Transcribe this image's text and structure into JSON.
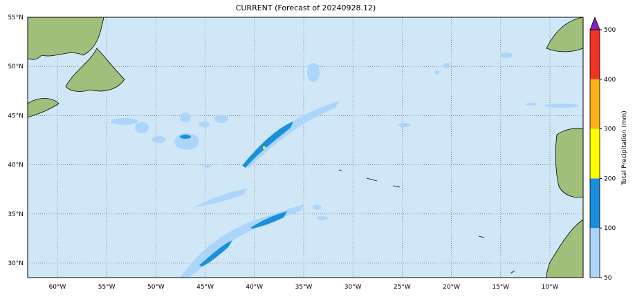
{
  "title": "CURRENT (Forecast of 20240928.12)",
  "map": {
    "lat_labels": [
      "55°N",
      "50°N",
      "45°N",
      "40°N",
      "35°N",
      "30°N"
    ],
    "lon_labels": [
      "60°W",
      "55°W",
      "50°W",
      "45°W",
      "40°W",
      "35°W",
      "30°W",
      "25°W",
      "20°W",
      "15°W",
      "10°W"
    ]
  },
  "colorbar": {
    "label": "Total Precipitation (mm)",
    "ticks": [
      "50",
      "100",
      "200",
      "300",
      "400",
      "500"
    ],
    "colors": [
      "#acd5fa",
      "#1a8fdb",
      "#ffff00",
      "#fbb118",
      "#ee3524"
    ],
    "extend_color": "#8a1fc4"
  }
}
